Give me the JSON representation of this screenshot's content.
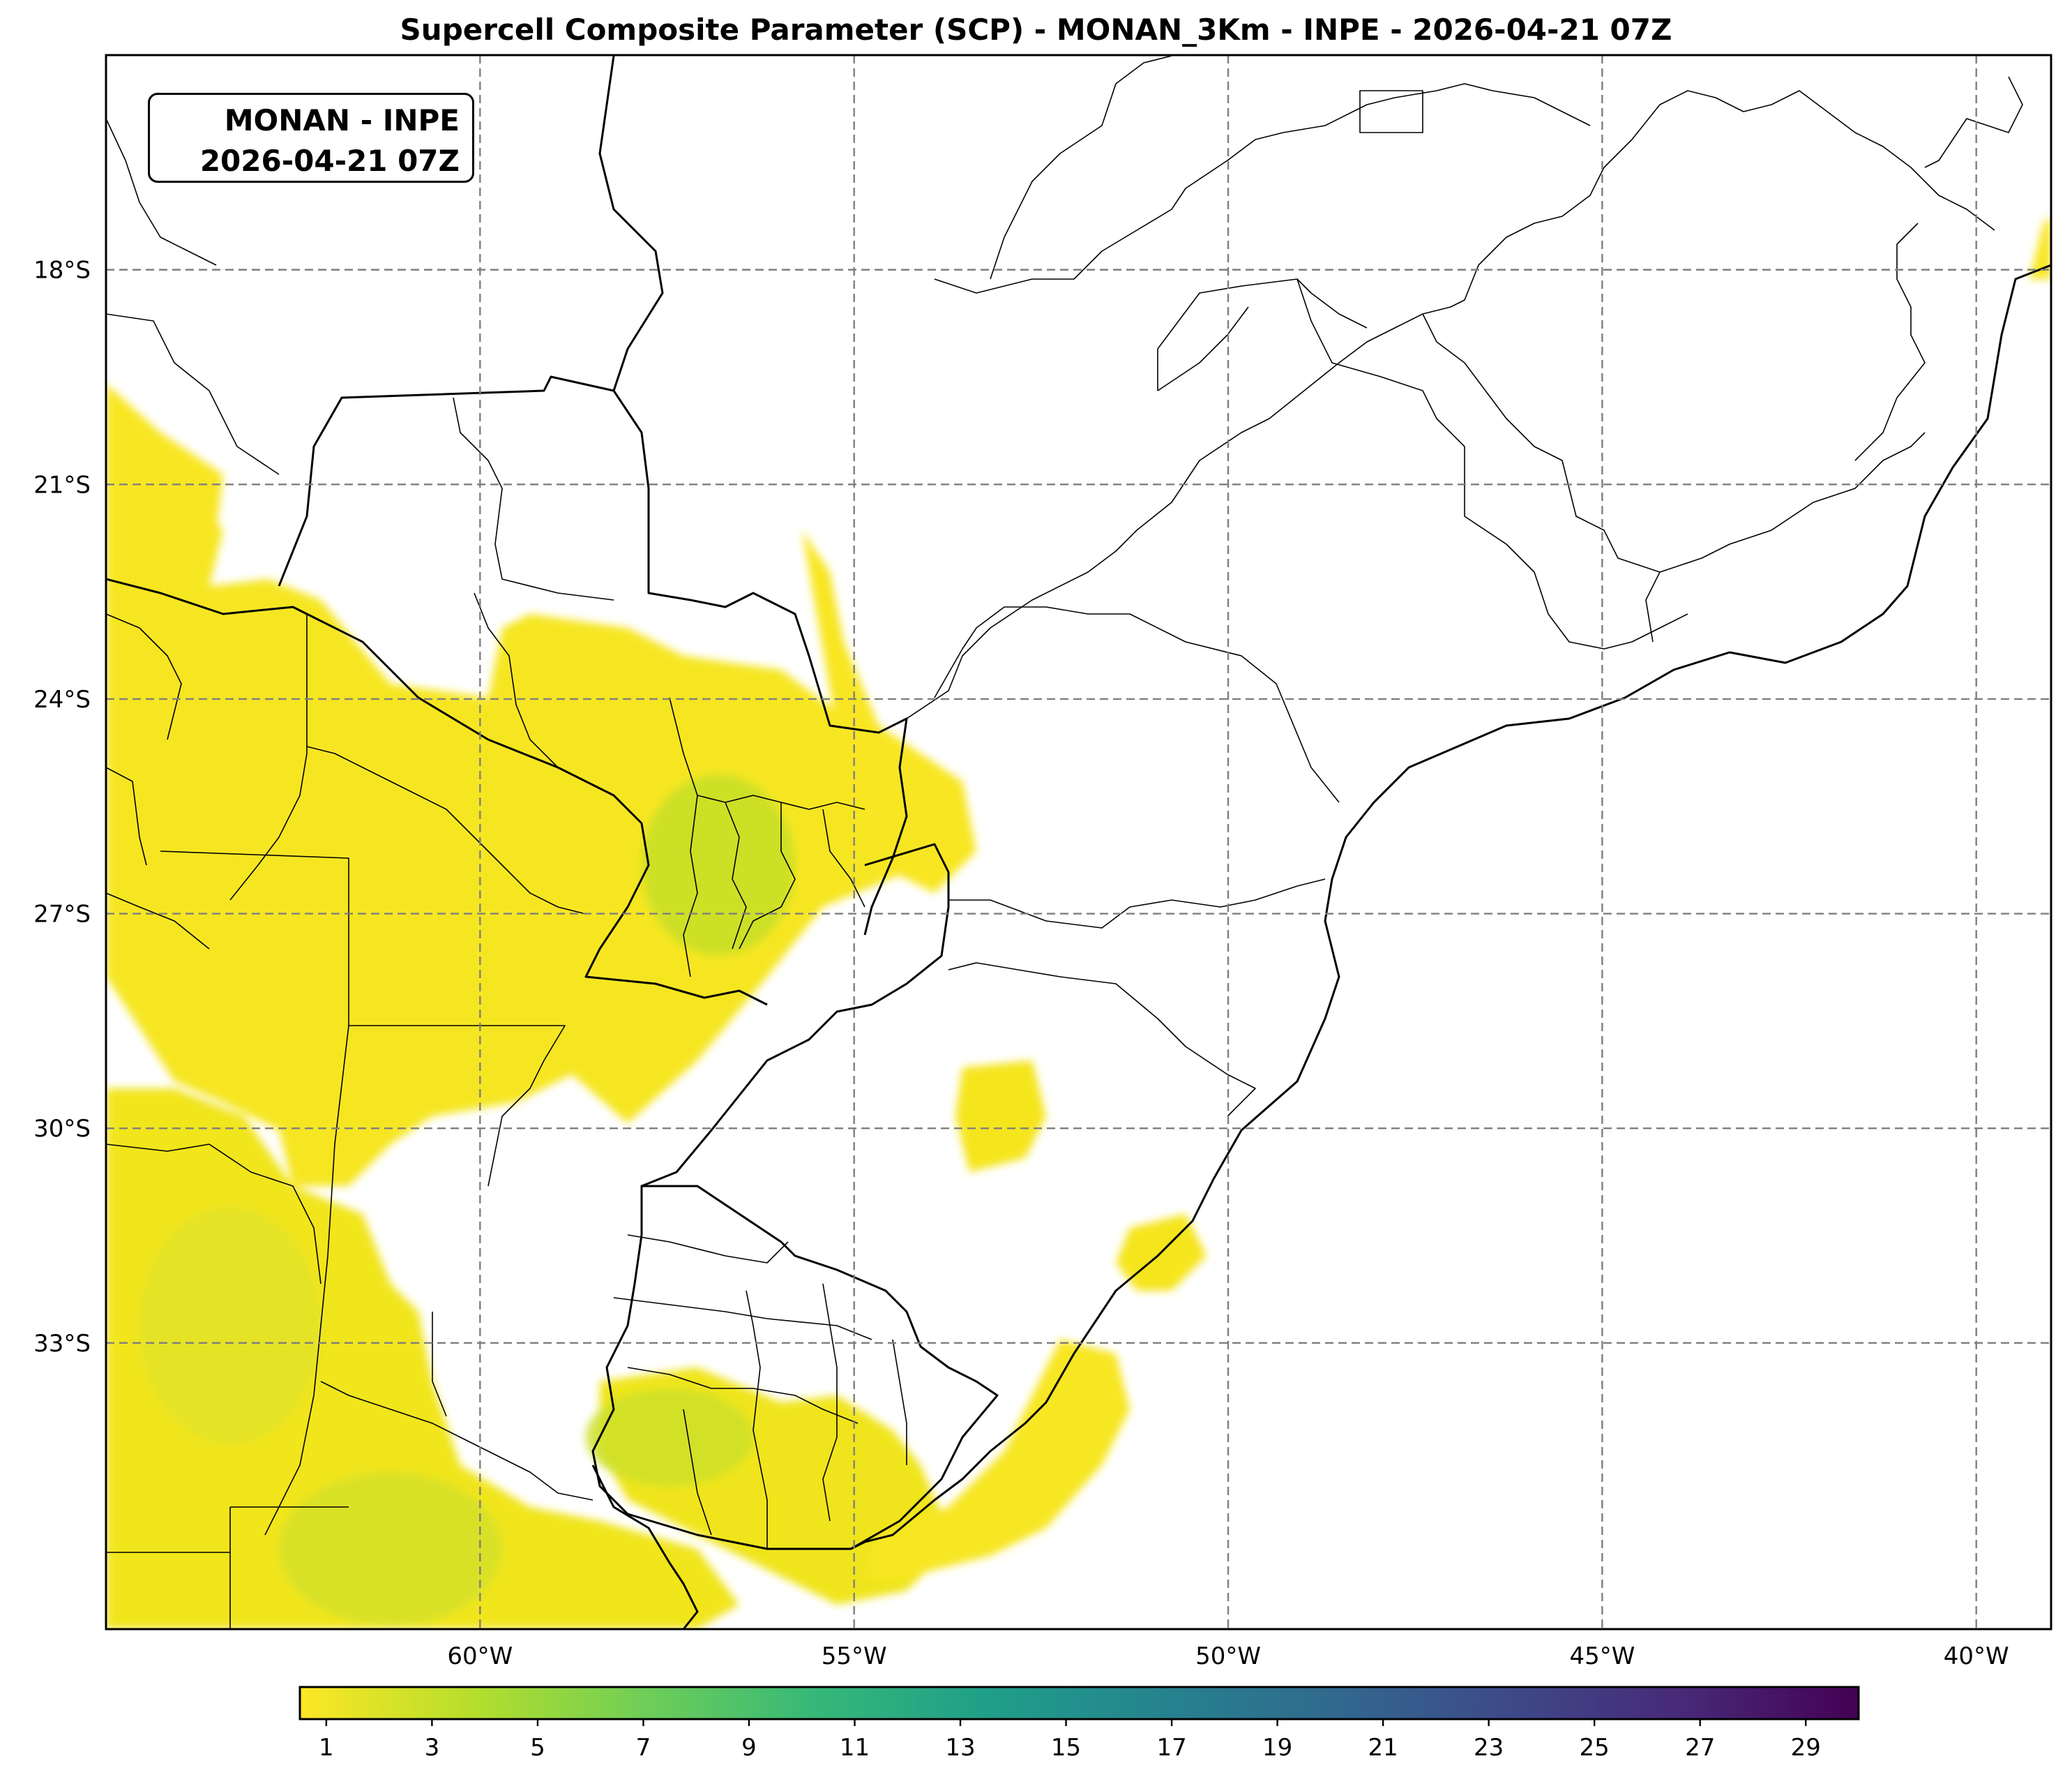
{
  "title": "Supercell Composite Parameter (SCP) - MONAN_3Km - INPE - 2026-04-21 07Z",
  "infobox": {
    "line1": "MONAN - INPE",
    "line2": "2026-04-21 07Z"
  },
  "map": {
    "projection": "PlateCarree",
    "lon_range": [
      -65,
      -39
    ],
    "lat_range": [
      -37,
      -15
    ],
    "lon_ticks": [
      "60°W",
      "55°W",
      "50°W",
      "45°W",
      "40°W"
    ],
    "lat_ticks": [
      "18°S",
      "21°S",
      "24°S",
      "27°S",
      "30°S",
      "33°S"
    ],
    "gridlines": "dashed",
    "field_colormap": "viridis_r"
  },
  "colorbar": {
    "ticks": [
      "1",
      "3",
      "5",
      "7",
      "9",
      "11",
      "13",
      "15",
      "17",
      "19",
      "21",
      "23",
      "25",
      "27",
      "29"
    ],
    "range": [
      0.5,
      30
    ],
    "colors": [
      "#fde725",
      "#b5de2b",
      "#6ece58",
      "#35b779",
      "#1f9e89",
      "#26828e",
      "#31688e",
      "#3e4989",
      "#482878",
      "#440154"
    ]
  }
}
